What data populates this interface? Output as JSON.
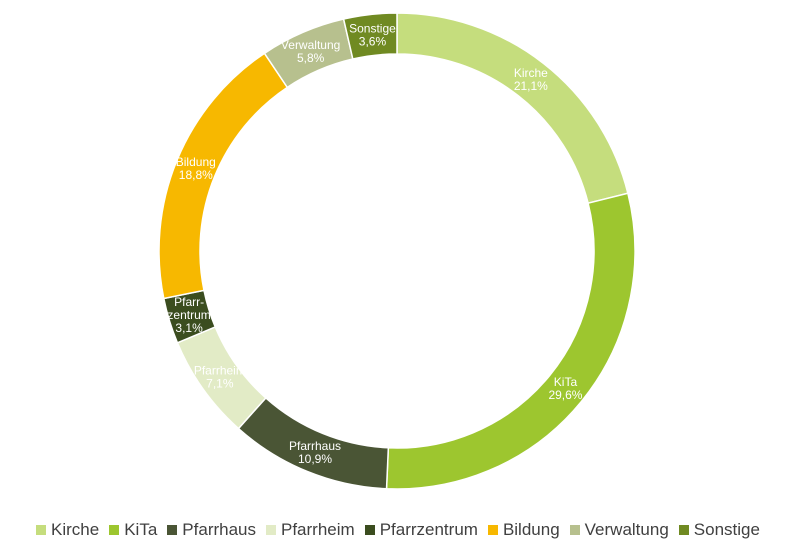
{
  "chart_data": {
    "type": "pie",
    "donut": true,
    "title": "",
    "legend_position": "bottom",
    "slices": [
      {
        "name": "Kirche",
        "value": 21.1,
        "label": "Kirche\n21,1%",
        "color": "#c5dd7d",
        "text_color": "#ffffff"
      },
      {
        "name": "KiTa",
        "value": 29.6,
        "label": "KiTa\n29,6%",
        "color": "#9dc62f",
        "text_color": "#ffffff"
      },
      {
        "name": "Pfarrhaus",
        "value": 10.9,
        "label": "Pfarrhaus\n10,9%",
        "color": "#4a5535",
        "text_color": "#ffffff"
      },
      {
        "name": "Pfarrheim",
        "value": 7.1,
        "label": "Pfarrheim\n7,1%",
        "color": "#e2ebc6",
        "text_color": "#ffffff"
      },
      {
        "name": "Pfarrzentrum",
        "value": 3.1,
        "label": "Pfarr-\nzentrum\n3,1%",
        "color": "#3b4d1f",
        "text_color": "#ffffff"
      },
      {
        "name": "Bildung",
        "value": 18.8,
        "label": "Bildung\n18,8%",
        "color": "#f7b800",
        "text_color": "#ffffff"
      },
      {
        "name": "Verwaltung",
        "value": 5.8,
        "label": "Verwaltung\n5,8%",
        "color": "#b7c08e",
        "text_color": "#ffffff"
      },
      {
        "name": "Sonstige",
        "value": 3.6,
        "label": "Sonstige\n3,6%",
        "color": "#708a22",
        "text_color": "#ffffff"
      }
    ]
  }
}
